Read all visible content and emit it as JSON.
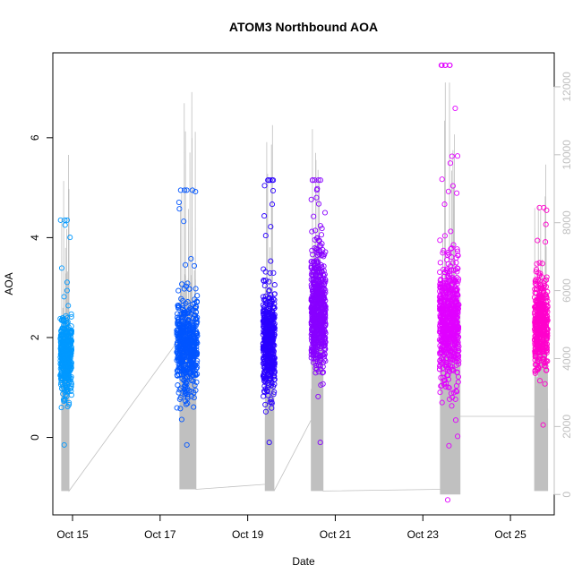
{
  "chart_data": {
    "type": "scatter",
    "title": "ATOM3 Northbound AOA",
    "xlabel": "Date",
    "ylabel": "AOA",
    "x_ticks": [
      "Oct 15",
      "Oct 17",
      "Oct 19",
      "Oct 21",
      "Oct 23",
      "Oct 25"
    ],
    "x_tick_days": [
      15,
      17,
      19,
      21,
      23,
      25
    ],
    "xlim_days": [
      14.55,
      26.0
    ],
    "y_ticks": [
      0,
      2,
      4,
      6
    ],
    "ylim": [
      -1.55,
      7.7
    ],
    "y2_ticks": [
      "0",
      "2000",
      "4000",
      "6000",
      "8000",
      "10000",
      "12000"
    ],
    "y2_tick_values": [
      0,
      2000,
      4000,
      6000,
      8000,
      10000,
      12000
    ],
    "y2lim": [
      -600,
      13000
    ],
    "grid": false,
    "clusters": [
      {
        "day_start": 14.72,
        "day_end": 14.98,
        "y_center": 1.6,
        "y_spread": 0.7,
        "y_min": -0.15,
        "y_max": 4.35,
        "color": "#0099ff",
        "count": 420
      },
      {
        "day_start": 17.38,
        "day_end": 17.85,
        "y_center": 1.8,
        "y_spread": 0.85,
        "y_min": -0.15,
        "y_max": 4.95,
        "color": "#0055ff",
        "count": 520
      },
      {
        "day_start": 19.35,
        "day_end": 19.62,
        "y_center": 1.9,
        "y_spread": 0.9,
        "y_min": -0.1,
        "y_max": 5.15,
        "color": "#2a00ff",
        "count": 460
      },
      {
        "day_start": 20.45,
        "day_end": 20.78,
        "y_center": 2.5,
        "y_spread": 1.1,
        "y_min": -0.1,
        "y_max": 5.15,
        "color": "#8800ff",
        "count": 620
      },
      {
        "day_start": 23.38,
        "day_end": 23.82,
        "y_center": 2.3,
        "y_spread": 1.1,
        "y_min": -1.25,
        "y_max": 7.45,
        "color": "#e000ff",
        "count": 620
      },
      {
        "day_start": 25.55,
        "day_end": 25.85,
        "y_center": 2.3,
        "y_spread": 0.8,
        "y_min": 0.25,
        "y_max": 4.6,
        "color": "#ff00cc",
        "count": 420
      }
    ],
    "secondary_series": {
      "name": "",
      "color": "#c0c0c0",
      "bursts": [
        {
          "day_start": 14.75,
          "day_end": 14.92,
          "low": 100,
          "high": 10000
        },
        {
          "day_start": 17.45,
          "day_end": 17.82,
          "low": 150,
          "high": 12000
        },
        {
          "day_start": 19.4,
          "day_end": 19.6,
          "low": 100,
          "high": 11200
        },
        {
          "day_start": 20.45,
          "day_end": 20.72,
          "low": 100,
          "high": 10800
        },
        {
          "day_start": 23.4,
          "day_end": 23.85,
          "low": 0,
          "high": 12300
        },
        {
          "day_start": 25.55,
          "day_end": 25.85,
          "low": 100,
          "high": 9800
        }
      ],
      "connectors": [
        [
          14.92,
          100
        ],
        [
          17.45,
          4600
        ],
        [
          17.82,
          150
        ],
        [
          19.4,
          300
        ],
        [
          19.6,
          100
        ],
        [
          20.45,
          2200
        ],
        [
          20.72,
          100
        ],
        [
          23.4,
          150
        ],
        [
          23.85,
          2300
        ],
        [
          25.55,
          2300
        ]
      ]
    }
  }
}
